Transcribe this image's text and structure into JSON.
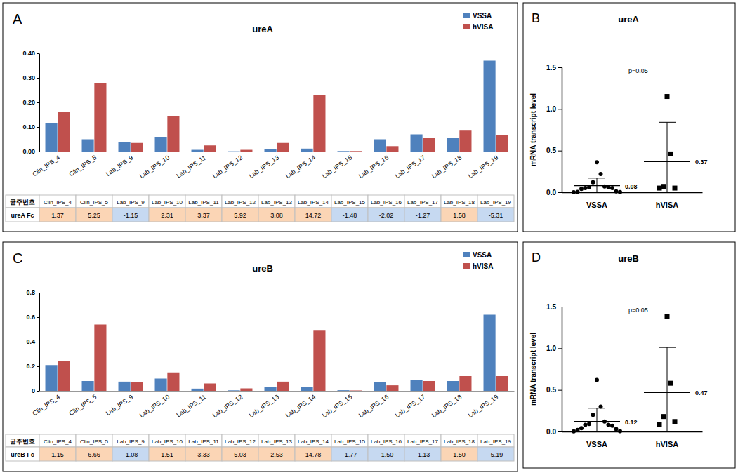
{
  "chart_data": [
    {
      "type": "bar",
      "annotations": [
        "A"
      ],
      "title": "ureA",
      "categories": [
        "Clin_IPS_4",
        "Clin_IPS_5",
        "Lab_IPS_9",
        "Lab_IPS_10",
        "Lab_IPS_11",
        "Lab_IPS_12",
        "Lab_IPS_13",
        "Lab_IPS_14",
        "Lab_IPS_15",
        "Lab_IPS_16",
        "Lab_IPS_17",
        "Lab_IPS_18",
        "Lab_IPS_19"
      ],
      "series": [
        {
          "name": "VSSA",
          "color": "#4F81BD",
          "values": [
            0.115,
            0.05,
            0.04,
            0.06,
            0.007,
            0.001,
            0.01,
            0.012,
            0.002,
            0.05,
            0.07,
            0.055,
            0.37
          ]
        },
        {
          "name": "hVISA",
          "color": "#C0504D",
          "values": [
            0.16,
            0.28,
            0.035,
            0.145,
            0.025,
            0.007,
            0.035,
            0.23,
            0.002,
            0.022,
            0.055,
            0.088,
            0.068
          ]
        }
      ],
      "ylim": [
        0,
        0.4
      ],
      "yticks": [
        {
          "value": 0,
          "label": "0.00"
        },
        {
          "value": 0.1,
          "label": "0.10"
        },
        {
          "value": 0.2,
          "label": "0.20"
        },
        {
          "value": 0.3,
          "label": "0.30"
        },
        {
          "value": 0.4,
          "label": "0.40"
        }
      ],
      "legend": "upper right",
      "table": {
        "header": "균주번호",
        "row_label": "ureA Fc",
        "values": [
          1.37,
          5.25,
          -1.15,
          2.31,
          3.37,
          5.92,
          3.08,
          14.72,
          -1.48,
          -2.02,
          -1.27,
          1.58,
          -5.31
        ]
      }
    },
    {
      "type": "scatter",
      "annotations": [
        "B",
        "p=0.05"
      ],
      "title": "ureA",
      "ylabel": "mRNA transcript level",
      "series": [
        {
          "name": "VSSA",
          "color": "#000000",
          "marker": "circle",
          "values": [
            0.36,
            0.22,
            0.12,
            0.07,
            0.06,
            0.06,
            0.05,
            0.05,
            0.04,
            0.01,
            0.005,
            0.003,
            0.001
          ],
          "mean": 0.08,
          "error": 0.09
        },
        {
          "name": "hVISA",
          "color": "#000000",
          "marker": "square",
          "values": [
            1.15,
            0.46,
            0.07,
            0.05,
            0.05
          ],
          "mean": 0.37,
          "error": 0.47
        }
      ],
      "ylim": [
        0,
        1.5
      ],
      "yticks": [
        {
          "value": 0,
          "label": "0.0"
        },
        {
          "value": 0.5,
          "label": "0.5"
        },
        {
          "value": 1,
          "label": "1.0"
        },
        {
          "value": 1.5,
          "label": "1.5"
        }
      ]
    },
    {
      "type": "bar",
      "annotations": [
        "C"
      ],
      "title": "ureB",
      "categories": [
        "Clin_IPS_4",
        "Clin_IPS_5",
        "Lab_IPS_9",
        "Lab_IPS_10",
        "Lab_IPS_11",
        "Lab_IPS_12",
        "Lab_IPS_13",
        "Lab_IPS_14",
        "Lab_IPS_15",
        "Lab_IPS_16",
        "Lab_IPS_17",
        "Lab_IPS_18",
        "Lab_IPS_19"
      ],
      "series": [
        {
          "name": "VSSA",
          "color": "#4F81BD",
          "values": [
            0.21,
            0.08,
            0.075,
            0.1,
            0.018,
            0.004,
            0.03,
            0.033,
            0.005,
            0.07,
            0.09,
            0.08,
            0.62
          ]
        },
        {
          "name": "hVISA",
          "color": "#C0504D",
          "values": [
            0.24,
            0.54,
            0.07,
            0.15,
            0.06,
            0.02,
            0.075,
            0.49,
            0.003,
            0.045,
            0.08,
            0.12,
            0.12
          ]
        }
      ],
      "ylim": [
        0,
        0.8
      ],
      "yticks": [
        0,
        0.2,
        0.4,
        0.6,
        0.8
      ],
      "legend": "upper right",
      "table": {
        "header": "균주번호",
        "row_label": "ureB Fc",
        "values": [
          1.15,
          6.66,
          -1.08,
          1.51,
          3.33,
          5.03,
          2.53,
          14.78,
          -1.77,
          -1.5,
          -1.13,
          1.5,
          -5.19
        ],
        "value_labels": [
          "1.15",
          "6.66",
          "-1.08",
          "1.51",
          "3.33",
          "5.03",
          "2.53",
          "14.78",
          "-1.77",
          "-1.50",
          "-1.13",
          "1.50",
          "-5.19"
        ]
      }
    },
    {
      "type": "scatter",
      "annotations": [
        "D",
        "p=0.05"
      ],
      "title": "ureB",
      "ylabel": "mRNA transcript level",
      "series": [
        {
          "name": "VSSA",
          "color": "#000000",
          "marker": "circle",
          "values": [
            0.62,
            0.3,
            0.2,
            0.12,
            0.09,
            0.08,
            0.08,
            0.07,
            0.04,
            0.03,
            0.02,
            0.005,
            0.003
          ],
          "mean": 0.12,
          "error": 0.16
        },
        {
          "name": "hVISA",
          "color": "#000000",
          "marker": "square",
          "values": [
            1.38,
            0.58,
            0.18,
            0.12,
            0.08
          ],
          "mean": 0.47,
          "error": 0.54
        }
      ],
      "ylim": [
        0,
        1.5
      ],
      "yticks": [
        {
          "value": 0,
          "label": "0.0"
        },
        {
          "value": 0.5,
          "label": "0.5"
        },
        {
          "value": 1,
          "label": "1.0"
        },
        {
          "value": 1.5,
          "label": "1.5"
        }
      ]
    }
  ]
}
